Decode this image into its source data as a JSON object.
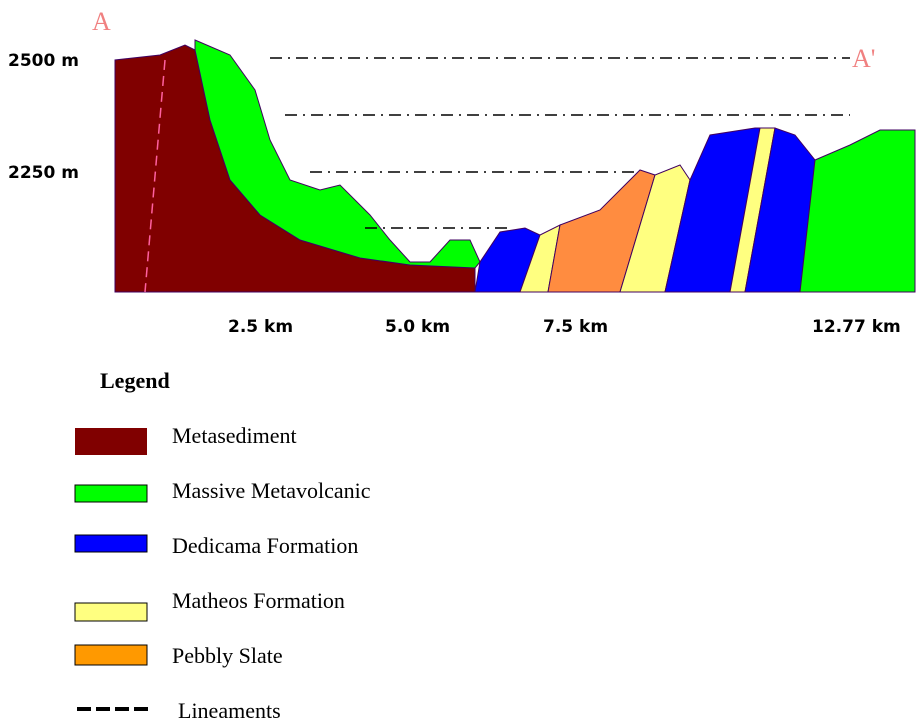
{
  "section": {
    "start_label": "A",
    "end_label": "A'",
    "elevations": [
      "2500 m",
      "2250 m"
    ],
    "distances": [
      "2.5 km",
      "5.0 km",
      "7.5 km",
      "12.77 km"
    ]
  },
  "legend": {
    "title": "Legend",
    "items": [
      "Metasediment",
      "Massive Metavolcanic",
      "Dedicama Formation",
      "Matheos Formation",
      "Pebbly Slate",
      "Lineaments"
    ]
  }
}
